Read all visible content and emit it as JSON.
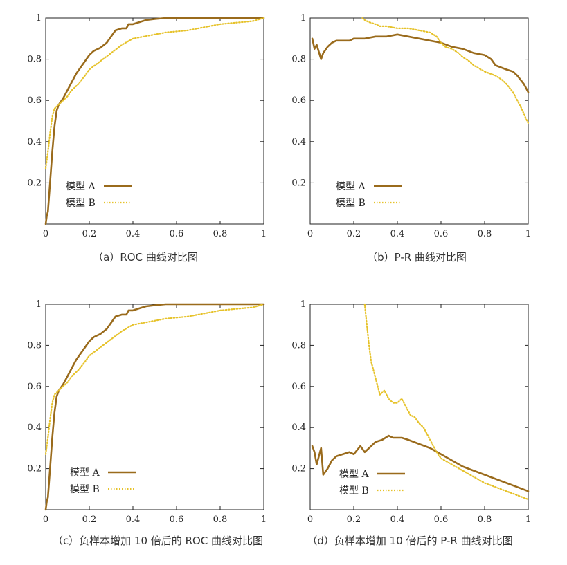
{
  "colors": {
    "model_a": "#9a6b1c",
    "model_b": "#e6c22a",
    "axis": "#222222"
  },
  "chart_data": [
    {
      "type": "line",
      "caption": "（a）ROC 曲线对比图",
      "xlim": [
        0,
        1
      ],
      "ylim": [
        0,
        1
      ],
      "xticks": [
        "0",
        "0.2",
        "0.4",
        "0.6",
        "0.8",
        "1"
      ],
      "yticks": [
        "0.2",
        "0.4",
        "0.6",
        "0.8",
        "1"
      ],
      "legend_position": "bottom-left",
      "series": [
        {
          "name": "模型 A",
          "style": "solid",
          "x": [
            0,
            0.005,
            0.01,
            0.02,
            0.03,
            0.04,
            0.05,
            0.06,
            0.08,
            0.1,
            0.12,
            0.14,
            0.16,
            0.18,
            0.2,
            0.22,
            0.25,
            0.28,
            0.3,
            0.32,
            0.35,
            0.37,
            0.38,
            0.4,
            0.43,
            0.46,
            0.5,
            0.55,
            0.6,
            0.7,
            0.8,
            0.9,
            1
          ],
          "y": [
            0,
            0.04,
            0.06,
            0.2,
            0.35,
            0.47,
            0.55,
            0.58,
            0.61,
            0.65,
            0.69,
            0.73,
            0.76,
            0.79,
            0.82,
            0.84,
            0.855,
            0.88,
            0.91,
            0.94,
            0.95,
            0.95,
            0.97,
            0.97,
            0.98,
            0.99,
            0.995,
            1,
            1,
            1,
            1,
            1,
            1
          ]
        },
        {
          "name": "模型 B",
          "style": "dotted",
          "x": [
            0,
            0.01,
            0.02,
            0.03,
            0.04,
            0.05,
            0.06,
            0.08,
            0.1,
            0.12,
            0.15,
            0.18,
            0.2,
            0.25,
            0.3,
            0.35,
            0.4,
            0.45,
            0.5,
            0.55,
            0.6,
            0.65,
            0.7,
            0.75,
            0.8,
            0.85,
            0.9,
            0.95,
            1
          ],
          "y": [
            0.27,
            0.35,
            0.44,
            0.52,
            0.56,
            0.57,
            0.58,
            0.6,
            0.62,
            0.65,
            0.68,
            0.72,
            0.75,
            0.79,
            0.83,
            0.87,
            0.9,
            0.91,
            0.92,
            0.93,
            0.935,
            0.94,
            0.95,
            0.96,
            0.97,
            0.975,
            0.98,
            0.985,
            1
          ]
        }
      ]
    },
    {
      "type": "line",
      "caption": "（b）P-R 曲线对比图",
      "xlim": [
        0,
        1
      ],
      "ylim": [
        0,
        1
      ],
      "xticks": [
        "0",
        "0.2",
        "0.4",
        "0.6",
        "0.8",
        "1"
      ],
      "yticks": [
        "0.2",
        "0.4",
        "0.6",
        "0.8",
        "1"
      ],
      "legend_position": "bottom-left",
      "series": [
        {
          "name": "模型 A",
          "style": "solid",
          "x": [
            0.01,
            0.02,
            0.03,
            0.05,
            0.06,
            0.08,
            0.1,
            0.12,
            0.15,
            0.18,
            0.2,
            0.25,
            0.3,
            0.35,
            0.4,
            0.45,
            0.5,
            0.55,
            0.6,
            0.65,
            0.7,
            0.75,
            0.8,
            0.83,
            0.85,
            0.9,
            0.93,
            0.95,
            0.98,
            1
          ],
          "y": [
            0.9,
            0.85,
            0.87,
            0.8,
            0.83,
            0.86,
            0.88,
            0.89,
            0.89,
            0.89,
            0.9,
            0.9,
            0.91,
            0.91,
            0.92,
            0.91,
            0.9,
            0.89,
            0.88,
            0.86,
            0.85,
            0.83,
            0.82,
            0.8,
            0.77,
            0.75,
            0.74,
            0.72,
            0.68,
            0.64
          ]
        },
        {
          "name": "模型 B",
          "style": "dotted",
          "x": [
            0.24,
            0.25,
            0.27,
            0.3,
            0.32,
            0.35,
            0.4,
            0.45,
            0.5,
            0.55,
            0.58,
            0.6,
            0.62,
            0.65,
            0.68,
            0.7,
            0.73,
            0.75,
            0.8,
            0.85,
            0.88,
            0.9,
            0.93,
            0.95,
            0.97,
            0.99,
            1
          ],
          "y": [
            1,
            0.99,
            0.98,
            0.97,
            0.96,
            0.96,
            0.95,
            0.95,
            0.94,
            0.93,
            0.91,
            0.88,
            0.86,
            0.85,
            0.83,
            0.81,
            0.79,
            0.77,
            0.74,
            0.72,
            0.7,
            0.68,
            0.64,
            0.6,
            0.56,
            0.51,
            0.49
          ]
        }
      ]
    },
    {
      "type": "line",
      "caption": "（c）负样本增加 10 倍后的 ROC 曲线对比图",
      "xlim": [
        0,
        1
      ],
      "ylim": [
        0,
        1
      ],
      "xticks": [
        "0",
        "0.2",
        "0.4",
        "0.6",
        "0.8",
        "1"
      ],
      "yticks": [
        "0.2",
        "0.4",
        "0.6",
        "0.8",
        "1"
      ],
      "legend_position": "bottom-left",
      "series": [
        {
          "name": "模型 A",
          "style": "solid",
          "x": [
            0,
            0.005,
            0.01,
            0.02,
            0.03,
            0.04,
            0.05,
            0.06,
            0.08,
            0.1,
            0.12,
            0.14,
            0.16,
            0.18,
            0.2,
            0.22,
            0.25,
            0.28,
            0.3,
            0.32,
            0.35,
            0.37,
            0.38,
            0.4,
            0.43,
            0.46,
            0.5,
            0.55,
            0.6,
            0.7,
            0.8,
            0.9,
            1
          ],
          "y": [
            0,
            0.04,
            0.06,
            0.2,
            0.35,
            0.47,
            0.55,
            0.58,
            0.61,
            0.65,
            0.69,
            0.73,
            0.76,
            0.79,
            0.82,
            0.84,
            0.855,
            0.88,
            0.91,
            0.94,
            0.95,
            0.95,
            0.97,
            0.97,
            0.98,
            0.99,
            0.995,
            1,
            1,
            1,
            1,
            1,
            1
          ]
        },
        {
          "name": "模型 B",
          "style": "dotted",
          "x": [
            0,
            0.01,
            0.02,
            0.03,
            0.04,
            0.05,
            0.06,
            0.08,
            0.1,
            0.12,
            0.15,
            0.18,
            0.2,
            0.25,
            0.3,
            0.35,
            0.4,
            0.45,
            0.5,
            0.55,
            0.6,
            0.65,
            0.7,
            0.75,
            0.8,
            0.85,
            0.9,
            0.95,
            1
          ],
          "y": [
            0.27,
            0.35,
            0.44,
            0.52,
            0.56,
            0.57,
            0.58,
            0.6,
            0.62,
            0.65,
            0.68,
            0.72,
            0.75,
            0.79,
            0.83,
            0.87,
            0.9,
            0.91,
            0.92,
            0.93,
            0.935,
            0.94,
            0.95,
            0.96,
            0.97,
            0.975,
            0.98,
            0.985,
            1
          ]
        }
      ]
    },
    {
      "type": "line",
      "caption": "（d）负样本增加 10 倍后的 P-R 曲线对比图",
      "xlim": [
        0,
        1
      ],
      "ylim": [
        0,
        1
      ],
      "xticks": [
        "0",
        "0.2",
        "0.4",
        "0.6",
        "0.8",
        "1"
      ],
      "yticks": [
        "0.2",
        "0.4",
        "0.6",
        "0.8",
        "1"
      ],
      "legend_position": "bottom-left",
      "series": [
        {
          "name": "模型 A",
          "style": "solid",
          "x": [
            0.01,
            0.02,
            0.03,
            0.05,
            0.06,
            0.08,
            0.1,
            0.12,
            0.15,
            0.18,
            0.2,
            0.23,
            0.25,
            0.28,
            0.3,
            0.33,
            0.36,
            0.38,
            0.4,
            0.42,
            0.45,
            0.5,
            0.55,
            0.6,
            0.65,
            0.7,
            0.75,
            0.8,
            0.85,
            0.9,
            0.95,
            1
          ],
          "y": [
            0.31,
            0.28,
            0.22,
            0.3,
            0.17,
            0.2,
            0.24,
            0.26,
            0.27,
            0.28,
            0.27,
            0.31,
            0.28,
            0.31,
            0.33,
            0.34,
            0.36,
            0.35,
            0.35,
            0.35,
            0.34,
            0.32,
            0.3,
            0.27,
            0.24,
            0.21,
            0.19,
            0.17,
            0.15,
            0.13,
            0.11,
            0.09
          ]
        },
        {
          "name": "模型 B",
          "style": "dotted",
          "x": [
            0.25,
            0.255,
            0.26,
            0.27,
            0.28,
            0.29,
            0.3,
            0.31,
            0.32,
            0.34,
            0.36,
            0.38,
            0.4,
            0.42,
            0.44,
            0.46,
            0.48,
            0.5,
            0.52,
            0.54,
            0.56,
            0.58,
            0.6,
            0.65,
            0.7,
            0.75,
            0.8,
            0.85,
            0.9,
            0.95,
            1
          ],
          "y": [
            1,
            0.95,
            0.9,
            0.8,
            0.72,
            0.68,
            0.64,
            0.6,
            0.56,
            0.58,
            0.54,
            0.52,
            0.52,
            0.54,
            0.5,
            0.46,
            0.45,
            0.42,
            0.4,
            0.36,
            0.32,
            0.28,
            0.25,
            0.22,
            0.19,
            0.16,
            0.13,
            0.11,
            0.09,
            0.07,
            0.05
          ]
        }
      ]
    }
  ]
}
